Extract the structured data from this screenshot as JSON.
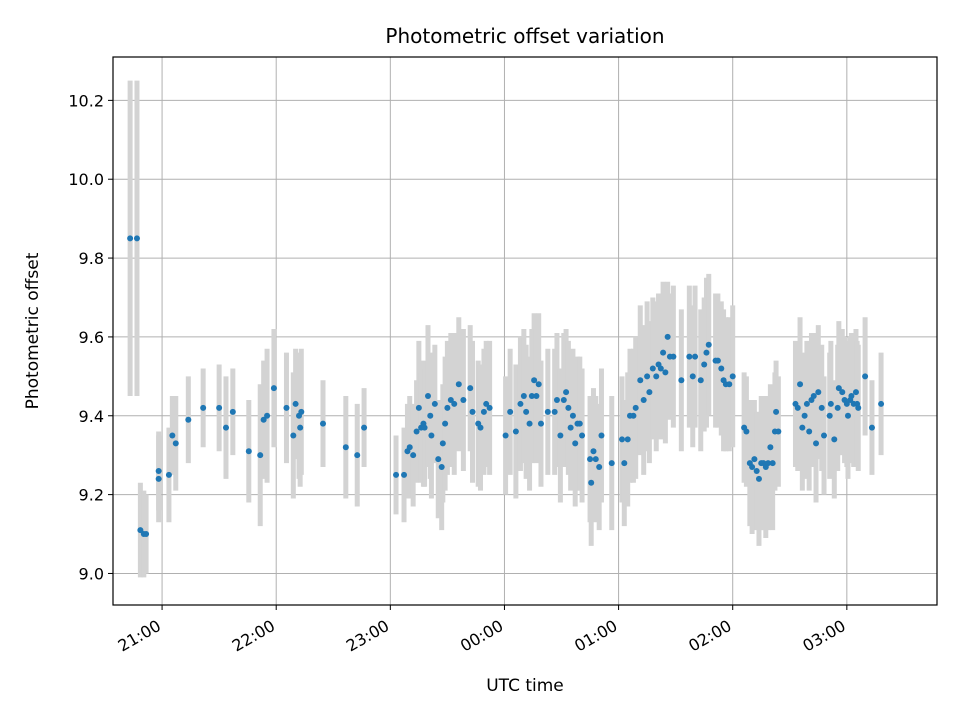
{
  "chart_data": {
    "type": "scatter",
    "title": "Photometric offset variation",
    "xlabel": "UTC time",
    "ylabel": "Photometric offset",
    "grid": true,
    "x_unit": "hours (UTC clock; values past 24 are after midnight)",
    "xlim": [
      20.57,
      27.79
    ],
    "ylim": [
      8.92,
      10.31
    ],
    "x_ticks": [
      {
        "value": 21,
        "label": "21:00"
      },
      {
        "value": 22,
        "label": "22:00"
      },
      {
        "value": 23,
        "label": "23:00"
      },
      {
        "value": 24,
        "label": "00:00"
      },
      {
        "value": 25,
        "label": "01:00"
      },
      {
        "value": 26,
        "label": "02:00"
      },
      {
        "value": 27,
        "label": "03:00"
      }
    ],
    "y_ticks": [
      {
        "value": 9.0,
        "label": "9.0"
      },
      {
        "value": 9.2,
        "label": "9.2"
      },
      {
        "value": 9.4,
        "label": "9.4"
      },
      {
        "value": 9.6,
        "label": "9.6"
      },
      {
        "value": 9.8,
        "label": "9.8"
      },
      {
        "value": 10.0,
        "label": "10.0"
      },
      {
        "value": 10.2,
        "label": "10.2"
      }
    ],
    "colors": {
      "point": "#1f77b4",
      "errorbar": "#d3d3d3",
      "grid": "#b0b0b0"
    },
    "points": [
      {
        "x": 20.72,
        "y": 9.85,
        "err": 0.4
      },
      {
        "x": 20.78,
        "y": 9.85,
        "err": 0.4
      },
      {
        "x": 20.81,
        "y": 9.11,
        "err": 0.12
      },
      {
        "x": 20.84,
        "y": 9.1,
        "err": 0.11
      },
      {
        "x": 20.86,
        "y": 9.1,
        "err": 0.1
      },
      {
        "x": 20.97,
        "y": 9.26,
        "err": 0.1
      },
      {
        "x": 20.97,
        "y": 9.24,
        "err": 0.11
      },
      {
        "x": 21.06,
        "y": 9.25,
        "err": 0.12
      },
      {
        "x": 21.09,
        "y": 9.35,
        "err": 0.1
      },
      {
        "x": 21.12,
        "y": 9.33,
        "err": 0.12
      },
      {
        "x": 21.23,
        "y": 9.39,
        "err": 0.11
      },
      {
        "x": 21.36,
        "y": 9.42,
        "err": 0.1
      },
      {
        "x": 21.5,
        "y": 9.42,
        "err": 0.11
      },
      {
        "x": 21.56,
        "y": 9.37,
        "err": 0.13
      },
      {
        "x": 21.62,
        "y": 9.41,
        "err": 0.11
      },
      {
        "x": 21.76,
        "y": 9.31,
        "err": 0.13
      },
      {
        "x": 21.86,
        "y": 9.3,
        "err": 0.18
      },
      {
        "x": 21.89,
        "y": 9.39,
        "err": 0.15
      },
      {
        "x": 21.92,
        "y": 9.4,
        "err": 0.17
      },
      {
        "x": 21.98,
        "y": 9.47,
        "err": 0.15
      },
      {
        "x": 22.09,
        "y": 9.42,
        "err": 0.14
      },
      {
        "x": 22.15,
        "y": 9.35,
        "err": 0.16
      },
      {
        "x": 22.17,
        "y": 9.43,
        "err": 0.14
      },
      {
        "x": 22.2,
        "y": 9.4,
        "err": 0.16
      },
      {
        "x": 22.21,
        "y": 9.37,
        "err": 0.15
      },
      {
        "x": 22.22,
        "y": 9.41,
        "err": 0.16
      },
      {
        "x": 22.41,
        "y": 9.38,
        "err": 0.11
      },
      {
        "x": 22.61,
        "y": 9.32,
        "err": 0.13
      },
      {
        "x": 22.71,
        "y": 9.3,
        "err": 0.13
      },
      {
        "x": 22.77,
        "y": 9.37,
        "err": 0.1
      },
      {
        "x": 23.05,
        "y": 9.25,
        "err": 0.1
      },
      {
        "x": 23.12,
        "y": 9.25,
        "err": 0.12
      },
      {
        "x": 23.15,
        "y": 9.31,
        "err": 0.12
      },
      {
        "x": 23.17,
        "y": 9.32,
        "err": 0.13
      },
      {
        "x": 23.2,
        "y": 9.3,
        "err": 0.13
      },
      {
        "x": 23.23,
        "y": 9.36,
        "err": 0.13
      },
      {
        "x": 23.25,
        "y": 9.42,
        "err": 0.17
      },
      {
        "x": 23.27,
        "y": 9.37,
        "err": 0.14
      },
      {
        "x": 23.29,
        "y": 9.38,
        "err": 0.16
      },
      {
        "x": 23.3,
        "y": 9.37,
        "err": 0.15
      },
      {
        "x": 23.33,
        "y": 9.45,
        "err": 0.18
      },
      {
        "x": 23.35,
        "y": 9.4,
        "err": 0.16
      },
      {
        "x": 23.36,
        "y": 9.35,
        "err": 0.16
      },
      {
        "x": 23.39,
        "y": 9.43,
        "err": 0.15
      },
      {
        "x": 23.42,
        "y": 9.29,
        "err": 0.15
      },
      {
        "x": 23.45,
        "y": 9.27,
        "err": 0.16
      },
      {
        "x": 23.46,
        "y": 9.33,
        "err": 0.15
      },
      {
        "x": 23.48,
        "y": 9.38,
        "err": 0.17
      },
      {
        "x": 23.5,
        "y": 9.42,
        "err": 0.17
      },
      {
        "x": 23.53,
        "y": 9.44,
        "err": 0.17
      },
      {
        "x": 23.56,
        "y": 9.43,
        "err": 0.18
      },
      {
        "x": 23.6,
        "y": 9.48,
        "err": 0.17
      },
      {
        "x": 23.64,
        "y": 9.44,
        "err": 0.18
      },
      {
        "x": 23.7,
        "y": 9.47,
        "err": 0.16
      },
      {
        "x": 23.72,
        "y": 9.41,
        "err": 0.18
      },
      {
        "x": 23.77,
        "y": 9.38,
        "err": 0.16
      },
      {
        "x": 23.79,
        "y": 9.37,
        "err": 0.16
      },
      {
        "x": 23.82,
        "y": 9.41,
        "err": 0.16
      },
      {
        "x": 23.84,
        "y": 9.43,
        "err": 0.16
      },
      {
        "x": 23.87,
        "y": 9.42,
        "err": 0.17
      },
      {
        "x": 24.01,
        "y": 9.35,
        "err": 0.15
      },
      {
        "x": 24.05,
        "y": 9.41,
        "err": 0.16
      },
      {
        "x": 24.1,
        "y": 9.36,
        "err": 0.17
      },
      {
        "x": 24.14,
        "y": 9.43,
        "err": 0.17
      },
      {
        "x": 24.17,
        "y": 9.45,
        "err": 0.17
      },
      {
        "x": 24.19,
        "y": 9.41,
        "err": 0.17
      },
      {
        "x": 24.22,
        "y": 9.38,
        "err": 0.17
      },
      {
        "x": 24.24,
        "y": 9.45,
        "err": 0.17
      },
      {
        "x": 24.26,
        "y": 9.49,
        "err": 0.17
      },
      {
        "x": 24.28,
        "y": 9.45,
        "err": 0.17
      },
      {
        "x": 24.3,
        "y": 9.48,
        "err": 0.18
      },
      {
        "x": 24.32,
        "y": 9.38,
        "err": 0.16
      },
      {
        "x": 24.38,
        "y": 9.41,
        "err": 0.16
      },
      {
        "x": 24.44,
        "y": 9.41,
        "err": 0.16
      },
      {
        "x": 24.46,
        "y": 9.44,
        "err": 0.17
      },
      {
        "x": 24.49,
        "y": 9.35,
        "err": 0.17
      },
      {
        "x": 24.52,
        "y": 9.44,
        "err": 0.17
      },
      {
        "x": 24.54,
        "y": 9.46,
        "err": 0.16
      },
      {
        "x": 24.56,
        "y": 9.42,
        "err": 0.17
      },
      {
        "x": 24.58,
        "y": 9.37,
        "err": 0.16
      },
      {
        "x": 24.6,
        "y": 9.4,
        "err": 0.17
      },
      {
        "x": 24.62,
        "y": 9.33,
        "err": 0.16
      },
      {
        "x": 24.64,
        "y": 9.38,
        "err": 0.17
      },
      {
        "x": 24.66,
        "y": 9.38,
        "err": 0.17
      },
      {
        "x": 24.68,
        "y": 9.35,
        "err": 0.17
      },
      {
        "x": 24.75,
        "y": 9.29,
        "err": 0.16
      },
      {
        "x": 24.76,
        "y": 9.23,
        "err": 0.16
      },
      {
        "x": 24.78,
        "y": 9.31,
        "err": 0.16
      },
      {
        "x": 24.8,
        "y": 9.29,
        "err": 0.16
      },
      {
        "x": 24.83,
        "y": 9.27,
        "err": 0.16
      },
      {
        "x": 24.85,
        "y": 9.35,
        "err": 0.17
      },
      {
        "x": 24.94,
        "y": 9.28,
        "err": 0.17
      },
      {
        "x": 25.03,
        "y": 9.34,
        "err": 0.16
      },
      {
        "x": 25.05,
        "y": 9.28,
        "err": 0.16
      },
      {
        "x": 25.08,
        "y": 9.34,
        "err": 0.17
      },
      {
        "x": 25.1,
        "y": 9.4,
        "err": 0.17
      },
      {
        "x": 25.13,
        "y": 9.4,
        "err": 0.17
      },
      {
        "x": 25.15,
        "y": 9.42,
        "err": 0.18
      },
      {
        "x": 25.19,
        "y": 9.49,
        "err": 0.19
      },
      {
        "x": 25.22,
        "y": 9.44,
        "err": 0.19
      },
      {
        "x": 25.25,
        "y": 9.5,
        "err": 0.19
      },
      {
        "x": 25.27,
        "y": 9.46,
        "err": 0.18
      },
      {
        "x": 25.3,
        "y": 9.52,
        "err": 0.18
      },
      {
        "x": 25.33,
        "y": 9.5,
        "err": 0.19
      },
      {
        "x": 25.35,
        "y": 9.53,
        "err": 0.18
      },
      {
        "x": 25.37,
        "y": 9.52,
        "err": 0.18
      },
      {
        "x": 25.39,
        "y": 9.56,
        "err": 0.18
      },
      {
        "x": 25.41,
        "y": 9.51,
        "err": 0.18
      },
      {
        "x": 25.43,
        "y": 9.6,
        "err": 0.14
      },
      {
        "x": 25.45,
        "y": 9.55,
        "err": 0.16
      },
      {
        "x": 25.48,
        "y": 9.55,
        "err": 0.18
      },
      {
        "x": 25.55,
        "y": 9.49,
        "err": 0.18
      },
      {
        "x": 25.62,
        "y": 9.55,
        "err": 0.18
      },
      {
        "x": 25.65,
        "y": 9.5,
        "err": 0.18
      },
      {
        "x": 25.67,
        "y": 9.55,
        "err": 0.18
      },
      {
        "x": 25.72,
        "y": 9.49,
        "err": 0.18
      },
      {
        "x": 25.75,
        "y": 9.53,
        "err": 0.17
      },
      {
        "x": 25.77,
        "y": 9.56,
        "err": 0.19
      },
      {
        "x": 25.79,
        "y": 9.58,
        "err": 0.18
      },
      {
        "x": 25.85,
        "y": 9.54,
        "err": 0.17
      },
      {
        "x": 25.87,
        "y": 9.54,
        "err": 0.17
      },
      {
        "x": 25.9,
        "y": 9.52,
        "err": 0.17
      },
      {
        "x": 25.92,
        "y": 9.49,
        "err": 0.18
      },
      {
        "x": 25.94,
        "y": 9.48,
        "err": 0.17
      },
      {
        "x": 25.97,
        "y": 9.48,
        "err": 0.17
      },
      {
        "x": 26.0,
        "y": 9.5,
        "err": 0.18
      },
      {
        "x": 26.1,
        "y": 9.37,
        "err": 0.14
      },
      {
        "x": 26.12,
        "y": 9.36,
        "err": 0.14
      },
      {
        "x": 26.15,
        "y": 9.28,
        "err": 0.16
      },
      {
        "x": 26.17,
        "y": 9.27,
        "err": 0.17
      },
      {
        "x": 26.19,
        "y": 9.29,
        "err": 0.15
      },
      {
        "x": 26.21,
        "y": 9.26,
        "err": 0.15
      },
      {
        "x": 26.23,
        "y": 9.24,
        "err": 0.17
      },
      {
        "x": 26.25,
        "y": 9.28,
        "err": 0.17
      },
      {
        "x": 26.27,
        "y": 9.28,
        "err": 0.17
      },
      {
        "x": 26.29,
        "y": 9.27,
        "err": 0.18
      },
      {
        "x": 26.31,
        "y": 9.28,
        "err": 0.17
      },
      {
        "x": 26.33,
        "y": 9.32,
        "err": 0.16
      },
      {
        "x": 26.35,
        "y": 9.28,
        "err": 0.17
      },
      {
        "x": 26.37,
        "y": 9.36,
        "err": 0.15
      },
      {
        "x": 26.38,
        "y": 9.41,
        "err": 0.13
      },
      {
        "x": 26.4,
        "y": 9.36,
        "err": 0.14
      },
      {
        "x": 26.55,
        "y": 9.43,
        "err": 0.16
      },
      {
        "x": 26.57,
        "y": 9.42,
        "err": 0.16
      },
      {
        "x": 26.59,
        "y": 9.48,
        "err": 0.17
      },
      {
        "x": 26.61,
        "y": 9.37,
        "err": 0.16
      },
      {
        "x": 26.63,
        "y": 9.4,
        "err": 0.16
      },
      {
        "x": 26.65,
        "y": 9.43,
        "err": 0.16
      },
      {
        "x": 26.67,
        "y": 9.36,
        "err": 0.15
      },
      {
        "x": 26.69,
        "y": 9.44,
        "err": 0.17
      },
      {
        "x": 26.71,
        "y": 9.45,
        "err": 0.16
      },
      {
        "x": 26.73,
        "y": 9.33,
        "err": 0.15
      },
      {
        "x": 26.75,
        "y": 9.46,
        "err": 0.17
      },
      {
        "x": 26.78,
        "y": 9.42,
        "err": 0.16
      },
      {
        "x": 26.8,
        "y": 9.35,
        "err": 0.15
      },
      {
        "x": 26.85,
        "y": 9.4,
        "err": 0.16
      },
      {
        "x": 26.86,
        "y": 9.43,
        "err": 0.16
      },
      {
        "x": 26.89,
        "y": 9.34,
        "err": 0.15
      },
      {
        "x": 26.92,
        "y": 9.42,
        "err": 0.16
      },
      {
        "x": 26.93,
        "y": 9.47,
        "err": 0.17
      },
      {
        "x": 26.96,
        "y": 9.46,
        "err": 0.16
      },
      {
        "x": 26.98,
        "y": 9.44,
        "err": 0.16
      },
      {
        "x": 27.0,
        "y": 9.43,
        "err": 0.16
      },
      {
        "x": 27.01,
        "y": 9.4,
        "err": 0.16
      },
      {
        "x": 27.03,
        "y": 9.44,
        "err": 0.16
      },
      {
        "x": 27.04,
        "y": 9.45,
        "err": 0.16
      },
      {
        "x": 27.06,
        "y": 9.43,
        "err": 0.16
      },
      {
        "x": 27.08,
        "y": 9.46,
        "err": 0.16
      },
      {
        "x": 27.09,
        "y": 9.43,
        "err": 0.16
      },
      {
        "x": 27.1,
        "y": 9.42,
        "err": 0.16
      },
      {
        "x": 27.16,
        "y": 9.5,
        "err": 0.15
      },
      {
        "x": 27.22,
        "y": 9.37,
        "err": 0.12
      },
      {
        "x": 27.3,
        "y": 9.43,
        "err": 0.13
      }
    ]
  }
}
